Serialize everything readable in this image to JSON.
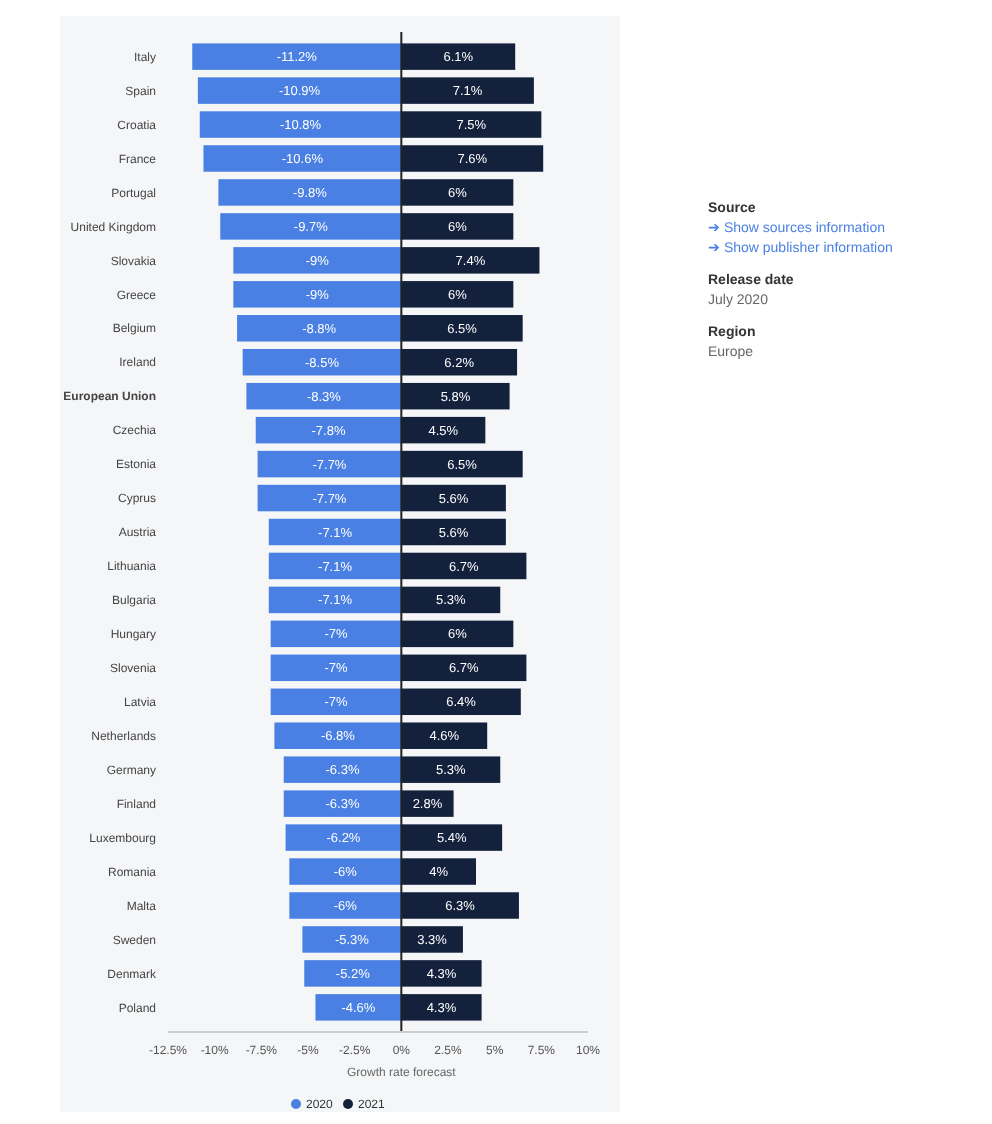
{
  "chart_data": {
    "type": "bar",
    "orientation": "horizontal",
    "stacked": true,
    "xlabel": "Growth rate forecast",
    "legend": "bottom",
    "categories": [
      "Italy",
      "Spain",
      "Croatia",
      "France",
      "Portugal",
      "United Kingdom",
      "Slovakia",
      "Greece",
      "Belgium",
      "Ireland",
      "European Union",
      "Czechia",
      "Estonia",
      "Cyprus",
      "Austria",
      "Lithuania",
      "Bulgaria",
      "Hungary",
      "Slovenia",
      "Latvia",
      "Netherlands",
      "Germany",
      "Finland",
      "Luxembourg",
      "Romania",
      "Malta",
      "Sweden",
      "Denmark",
      "Poland"
    ],
    "series": [
      {
        "name": "2020",
        "color": "#4a80e3",
        "values": [
          -11.2,
          -10.9,
          -10.8,
          -10.6,
          -9.8,
          -9.7,
          -9,
          -9,
          -8.8,
          -8.5,
          -8.3,
          -7.8,
          -7.7,
          -7.7,
          -7.1,
          -7.1,
          -7.1,
          -7,
          -7,
          -7,
          -6.8,
          -6.3,
          -6.3,
          -6.2,
          -6,
          -6,
          -5.3,
          -5.2,
          -4.6
        ],
        "value_labels": [
          "-11.2%",
          "-10.9%",
          "-10.8%",
          "-10.6%",
          "-9.8%",
          "-9.7%",
          "-9%",
          "-9%",
          "-8.8%",
          "-8.5%",
          "-8.3%",
          "-7.8%",
          "-7.7%",
          "-7.7%",
          "-7.1%",
          "-7.1%",
          "-7.1%",
          "-7%",
          "-7%",
          "-7%",
          "-6.8%",
          "-6.3%",
          "-6.3%",
          "-6.2%",
          "-6%",
          "-6%",
          "-5.3%",
          "-5.2%",
          "-4.6%"
        ]
      },
      {
        "name": "2021",
        "color": "#14213d",
        "values": [
          6.1,
          7.1,
          7.5,
          7.6,
          6,
          6,
          7.4,
          6,
          6.5,
          6.2,
          5.8,
          4.5,
          6.5,
          5.6,
          5.6,
          6.7,
          5.3,
          6,
          6.7,
          6.4,
          4.6,
          5.3,
          2.8,
          5.4,
          4,
          6.3,
          3.3,
          4.3,
          4.3
        ],
        "value_labels": [
          "6.1%",
          "7.1%",
          "7.5%",
          "7.6%",
          "6%",
          "6%",
          "7.4%",
          "6%",
          "6.5%",
          "6.2%",
          "5.8%",
          "4.5%",
          "6.5%",
          "5.6%",
          "5.6%",
          "6.7%",
          "5.3%",
          "6%",
          "6.7%",
          "6.4%",
          "4.6%",
          "5.3%",
          "2.8%",
          "5.4%",
          "4%",
          "6.3%",
          "3.3%",
          "4.3%",
          "4.3%"
        ]
      }
    ],
    "xlim": [
      -12.5,
      10
    ],
    "xticks": [
      {
        "value": -12.5,
        "label": "-12.5%"
      },
      {
        "value": -10,
        "label": "-10%"
      },
      {
        "value": -7.5,
        "label": "-7.5%"
      },
      {
        "value": -5,
        "label": "-5%"
      },
      {
        "value": -2.5,
        "label": "-2.5%"
      },
      {
        "value": 0,
        "label": "0%"
      },
      {
        "value": 2.5,
        "label": "2.5%"
      },
      {
        "value": 5,
        "label": "5%"
      },
      {
        "value": 7.5,
        "label": "7.5%"
      },
      {
        "value": 10,
        "label": "10%"
      }
    ],
    "annotations": [
      "Source",
      "➔ Show sources information",
      "➔ Show publisher information",
      "Release date",
      "July 2020",
      "Region",
      "Europe"
    ]
  }
}
